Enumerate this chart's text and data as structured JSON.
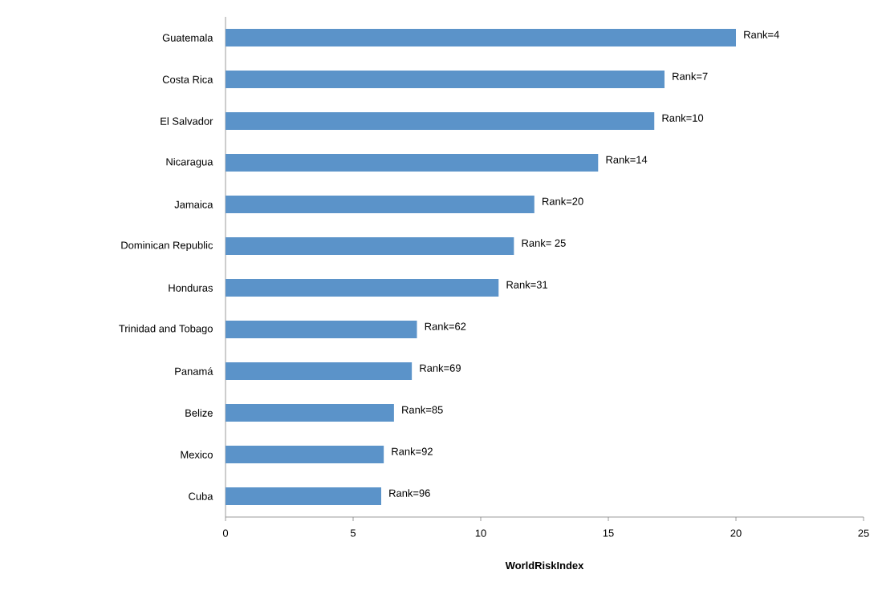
{
  "chart_data": {
    "type": "bar",
    "orientation": "horizontal",
    "xlabel": "WorldRiskIndex",
    "categories": [
      "Guatemala",
      "Costa Rica",
      "El Salvador",
      "Nicaragua",
      "Jamaica",
      "Dominican Republic",
      "Honduras",
      "Trinidad and Tobago",
      "Panamá",
      "Belize",
      "Mexico",
      "Cuba"
    ],
    "values": [
      20.0,
      17.2,
      16.8,
      14.6,
      12.1,
      11.3,
      10.7,
      7.5,
      7.3,
      6.6,
      6.2,
      6.1
    ],
    "annotations": [
      {
        "text": "Rank=4",
        "x": 20.0,
        "y": "Guatemala"
      },
      {
        "text": "Rank=7",
        "x": 17.2,
        "y": "Costa Rica"
      },
      {
        "text": "Rank=10",
        "x": 16.8,
        "y": "El Salvador"
      },
      {
        "text": "Rank=14",
        "x": 14.6,
        "y": "Nicaragua"
      },
      {
        "text": "Rank=20",
        "x": 12.1,
        "y": "Jamaica"
      },
      {
        "text": "Rank= 25",
        "x": 11.3,
        "y": "Dominican Republic"
      },
      {
        "text": "Rank=31",
        "x": 10.7,
        "y": "Honduras"
      },
      {
        "text": "Rank=62",
        "x": 7.5,
        "y": "Trinidad and Tobago"
      },
      {
        "text": "Rank=69",
        "x": 7.3,
        "y": "Panamá"
      },
      {
        "text": "Rank=85",
        "x": 6.6,
        "y": "Belize"
      },
      {
        "text": "Rank=92",
        "x": 6.2,
        "y": "Mexico"
      },
      {
        "text": "Rank=96",
        "x": 6.1,
        "y": "Cuba"
      }
    ],
    "color": "#5b93c9",
    "xlim": [
      0,
      25
    ],
    "xticks": [
      0,
      5,
      10,
      15,
      20,
      25
    ]
  }
}
